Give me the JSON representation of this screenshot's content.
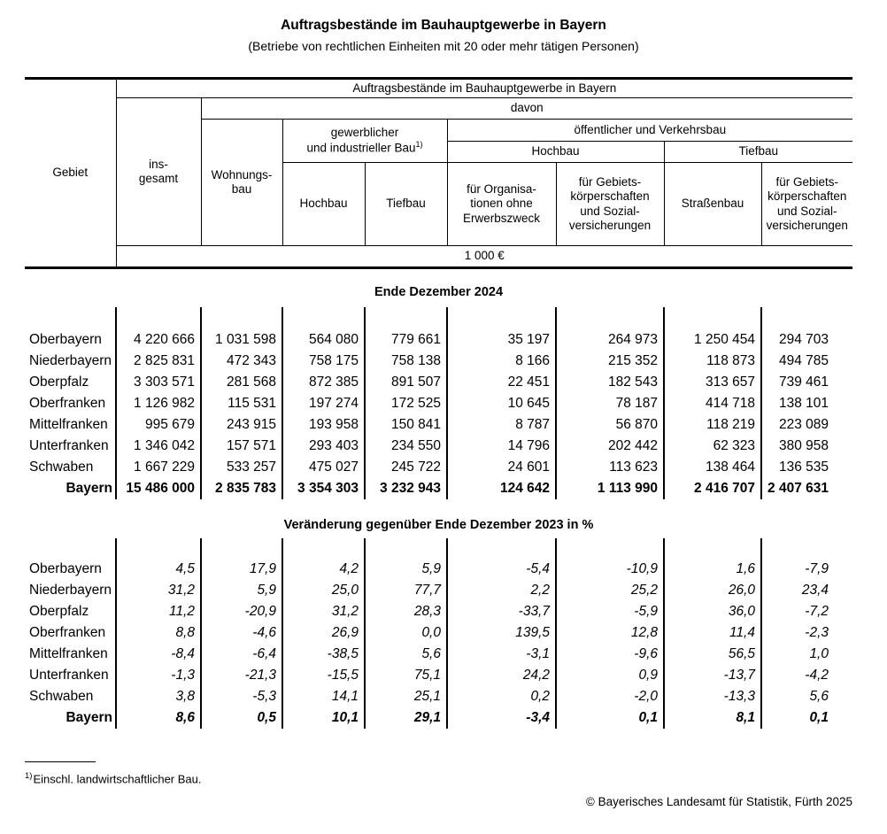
{
  "page": {
    "title": "Auftragsbestände im Bauhauptgewerbe in Bayern",
    "subtitle": "(Betriebe von rechtlichen Einheiten mit 20 oder mehr tätigen Personen)"
  },
  "table": {
    "header": {
      "gebiet": "Gebiet",
      "span_title": "Auftragsbestände im Bauhauptgewerbe in Bayern",
      "davon": "davon",
      "insgesamt": "ins-\ngesamt",
      "wohnungsbau": "Wohnungs-\nbau",
      "gewerblicher_bau": "gewerblicher\nund industrieller Bau",
      "gewerblicher_bau_footnote": "1)",
      "oeffentlicher_bau": "öffentlicher und Verkehrsbau",
      "oeff_hochbau": "Hochbau",
      "oeff_tiefbau": "Tiefbau",
      "gew_hochbau": "Hochbau",
      "gew_tiefbau": "Tiefbau",
      "organisationen": "für Organisa-\ntionen ohne\nErwerbszweck",
      "gebietskoerperschaften_hochbau": "für Gebiets-\nkörperschaften\nund Sozial-\nversicherungen",
      "strassenbau": "Straßenbau",
      "gebietskoerperschaften_tiefbau": "für Gebiets-\nkörperschaften\nund Sozial-\nversicherungen",
      "unit": "1 000 €"
    },
    "sections": [
      {
        "title": "Ende Dezember 2024",
        "italic": false,
        "rows": [
          {
            "label": "Oberbayern",
            "bold": false,
            "values": [
              "4 220 666",
              "1 031 598",
              "564 080",
              "779 661",
              "35 197",
              "264 973",
              "1 250 454",
              "294 703"
            ]
          },
          {
            "label": "Niederbayern",
            "bold": false,
            "values": [
              "2 825 831",
              "472 343",
              "758 175",
              "758 138",
              "8 166",
              "215 352",
              "118 873",
              "494 785"
            ]
          },
          {
            "label": "Oberpfalz",
            "bold": false,
            "values": [
              "3 303 571",
              "281 568",
              "872 385",
              "891 507",
              "22 451",
              "182 543",
              "313 657",
              "739 461"
            ]
          },
          {
            "label": "Oberfranken",
            "bold": false,
            "values": [
              "1 126 982",
              "115 531",
              "197 274",
              "172 525",
              "10 645",
              "78 187",
              "414 718",
              "138 101"
            ]
          },
          {
            "label": "Mittelfranken",
            "bold": false,
            "values": [
              "995 679",
              "243 915",
              "193 958",
              "150 841",
              "8 787",
              "56 870",
              "118 219",
              "223 089"
            ]
          },
          {
            "label": "Unterfranken",
            "bold": false,
            "values": [
              "1 346 042",
              "157 571",
              "293 403",
              "234 550",
              "14 796",
              "202 442",
              "62 323",
              "380 958"
            ]
          },
          {
            "label": "Schwaben",
            "bold": false,
            "values": [
              "1 667 229",
              "533 257",
              "475 027",
              "245 722",
              "24 601",
              "113 623",
              "138 464",
              "136 535"
            ]
          },
          {
            "label": "Bayern",
            "bold": true,
            "values": [
              "15 486 000",
              "2 835 783",
              "3 354 303",
              "3 232 943",
              "124 642",
              "1 113 990",
              "2 416 707",
              "2 407 631"
            ]
          }
        ]
      },
      {
        "title": "Veränderung gegenüber Ende Dezember 2023 in %",
        "italic": true,
        "rows": [
          {
            "label": "Oberbayern",
            "bold": false,
            "values": [
              "4,5",
              "17,9",
              "4,2",
              "5,9",
              "-5,4",
              "-10,9",
              "1,6",
              "-7,9"
            ]
          },
          {
            "label": "Niederbayern",
            "bold": false,
            "values": [
              "31,2",
              "5,9",
              "25,0",
              "77,7",
              "2,2",
              "25,2",
              "26,0",
              "23,4"
            ]
          },
          {
            "label": "Oberpfalz",
            "bold": false,
            "values": [
              "11,2",
              "-20,9",
              "31,2",
              "28,3",
              "-33,7",
              "-5,9",
              "36,0",
              "-7,2"
            ]
          },
          {
            "label": "Oberfranken",
            "bold": false,
            "values": [
              "8,8",
              "-4,6",
              "26,9",
              "0,0",
              "139,5",
              "12,8",
              "11,4",
              "-2,3"
            ]
          },
          {
            "label": "Mittelfranken",
            "bold": false,
            "values": [
              "-8,4",
              "-6,4",
              "-38,5",
              "5,6",
              "-3,1",
              "-9,6",
              "56,5",
              "1,0"
            ]
          },
          {
            "label": "Unterfranken",
            "bold": false,
            "values": [
              "-1,3",
              "-21,3",
              "-15,5",
              "75,1",
              "24,2",
              "0,9",
              "-13,7",
              "-4,2"
            ]
          },
          {
            "label": "Schwaben",
            "bold": false,
            "values": [
              "3,8",
              "-5,3",
              "14,1",
              "25,1",
              "0,2",
              "-2,0",
              "-13,3",
              "5,6"
            ]
          },
          {
            "label": "Bayern",
            "bold": true,
            "values": [
              "8,6",
              "0,5",
              "10,1",
              "29,1",
              "-3,4",
              "0,1",
              "8,1",
              "0,1"
            ]
          }
        ]
      }
    ]
  },
  "footer": {
    "footnote_marker": "1)",
    "footnote_text": "Einschl. landwirtschaftlicher Bau.",
    "copyright": "© Bayerisches Landesamt für Statistik, Fürth 2025"
  }
}
